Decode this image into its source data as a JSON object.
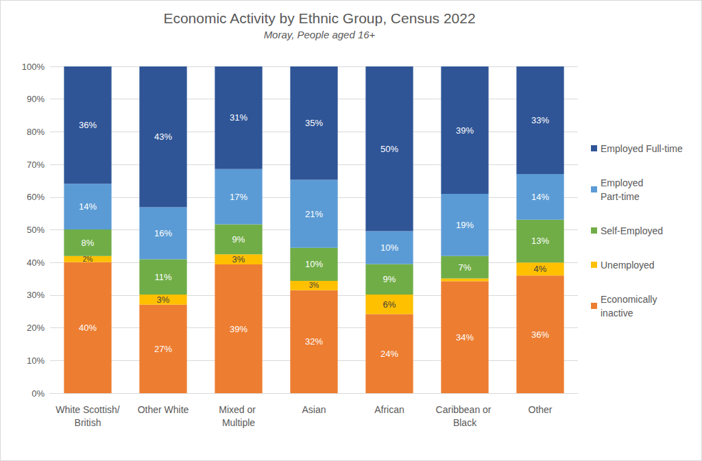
{
  "chart_data": {
    "type": "bar",
    "title": "Economic Activity by Ethnic Group, Census 2022",
    "subtitle": "Moray, People aged 16+",
    "categories": [
      "White Scottish/British",
      "Other White",
      "Mixed or Multiple",
      "Asian",
      "African",
      "Caribbean or Black",
      "Other"
    ],
    "series": [
      {
        "name": "Employed Full-time",
        "color": "#2F5597",
        "values": [
          35.9,
          43.1,
          31.4,
          34.7,
          50.4,
          39.0,
          32.9
        ],
        "value_labels": [
          "36%",
          "43%",
          "31%",
          "35%",
          "50%",
          "39%",
          "33%"
        ]
      },
      {
        "name": "Employed Part-time",
        "color": "#5B9BD5",
        "values": [
          14.0,
          15.9,
          16.9,
          20.8,
          10.1,
          19.0,
          14.0
        ],
        "value_labels": [
          "14%",
          "16%",
          "17%",
          "21%",
          "10%",
          "19%",
          "14%"
        ]
      },
      {
        "name": "Self-Employed",
        "color": "#70AD47",
        "values": [
          8.1,
          10.8,
          9.2,
          10.1,
          9.3,
          6.9,
          13.1
        ],
        "value_labels": [
          "8%",
          "11%",
          "9%",
          "10%",
          "9%",
          "7%",
          "13%"
        ]
      },
      {
        "name": "Unemployed",
        "color": "#FFC000",
        "values": [
          1.9,
          3.1,
          3.1,
          2.9,
          6.0,
          0.8,
          4.0
        ],
        "value_labels": [
          "2%",
          "3%",
          "3%",
          "3%",
          "6%",
          null,
          "4%"
        ]
      },
      {
        "name": "Economically inactive",
        "color": "#ED7D31",
        "values": [
          40.1,
          27.1,
          39.4,
          31.5,
          24.2,
          34.3,
          36.0
        ],
        "value_labels": [
          "40%",
          "27%",
          "39%",
          "32%",
          "24%",
          "34%",
          "36%"
        ]
      }
    ],
    "ylim": [
      0,
      100
    ],
    "yticks": [
      {
        "value": 0,
        "label": "0%"
      },
      {
        "value": 10,
        "label": "10%"
      },
      {
        "value": 20,
        "label": "20%"
      },
      {
        "value": 30,
        "label": "30%"
      },
      {
        "value": 40,
        "label": "40%"
      },
      {
        "value": 50,
        "label": "50%"
      },
      {
        "value": 60,
        "label": "60%"
      },
      {
        "value": 70,
        "label": "70%"
      },
      {
        "value": 80,
        "label": "80%"
      },
      {
        "value": 90,
        "label": "90%"
      },
      {
        "value": 100,
        "label": "100%"
      }
    ],
    "grid": true,
    "stacked": true,
    "data_labels": true,
    "legend": "right"
  }
}
